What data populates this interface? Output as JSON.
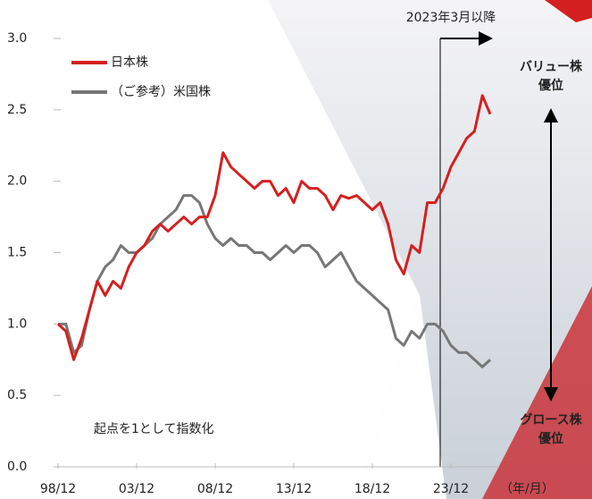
{
  "chart_data": {
    "type": "line",
    "categories": [
      "98/12",
      null,
      null,
      null,
      null,
      null,
      null,
      null,
      null,
      null,
      "03/12",
      null,
      null,
      null,
      null,
      null,
      null,
      null,
      null,
      null,
      "08/12",
      null,
      null,
      null,
      null,
      null,
      null,
      null,
      null,
      null,
      "13/12",
      null,
      null,
      null,
      null,
      null,
      null,
      null,
      null,
      null,
      "18/12",
      null,
      null,
      null,
      null,
      null,
      null,
      null,
      null,
      null,
      "23/12",
      null,
      null,
      null,
      null,
      null
    ],
    "x_unit_label": "（年/月）",
    "series": [
      {
        "name": "日本株",
        "color": "#d42020",
        "values": [
          1.0,
          0.95,
          0.75,
          0.9,
          1.1,
          1.3,
          1.2,
          1.3,
          1.25,
          1.4,
          1.5,
          1.55,
          1.65,
          1.7,
          1.65,
          1.7,
          1.75,
          1.7,
          1.75,
          1.75,
          1.9,
          2.2,
          2.1,
          2.05,
          2.0,
          1.95,
          2.0,
          2.0,
          1.9,
          1.95,
          1.85,
          2.0,
          1.95,
          1.95,
          1.9,
          1.8,
          1.9,
          1.88,
          1.9,
          1.85,
          1.8,
          1.85,
          1.7,
          1.45,
          1.35,
          1.55,
          1.5,
          1.85,
          1.85,
          1.95,
          2.1,
          2.2,
          2.3,
          2.35,
          2.6,
          2.47
        ]
      },
      {
        "name": "（ご参考）米国株",
        "color": "#777777",
        "values": [
          1.0,
          1.0,
          0.8,
          0.85,
          1.1,
          1.3,
          1.4,
          1.45,
          1.55,
          1.5,
          1.5,
          1.55,
          1.6,
          1.7,
          1.75,
          1.8,
          1.9,
          1.9,
          1.85,
          1.7,
          1.6,
          1.55,
          1.6,
          1.55,
          1.55,
          1.5,
          1.5,
          1.45,
          1.5,
          1.55,
          1.5,
          1.55,
          1.55,
          1.5,
          1.4,
          1.45,
          1.5,
          1.4,
          1.3,
          1.25,
          1.2,
          1.15,
          1.1,
          0.9,
          0.85,
          0.95,
          0.9,
          1.0,
          1.0,
          0.95,
          0.85,
          0.8,
          0.8,
          0.75,
          0.7,
          0.75
        ]
      }
    ],
    "ylim": [
      0,
      3
    ],
    "yticks": [
      {
        "value": 0,
        "label": "0.0"
      },
      0.5,
      {
        "value": 1,
        "label": "1.0"
      },
      1.5,
      {
        "value": 2,
        "label": "2.0"
      },
      2.5,
      {
        "value": 3,
        "label": "3.0"
      }
    ],
    "annotation": "2023年3月以降",
    "note": "起点を1として指数化",
    "top_label": [
      "バリュー株",
      "優位"
    ],
    "bottom_label": [
      "グロース株",
      "優位"
    ]
  }
}
